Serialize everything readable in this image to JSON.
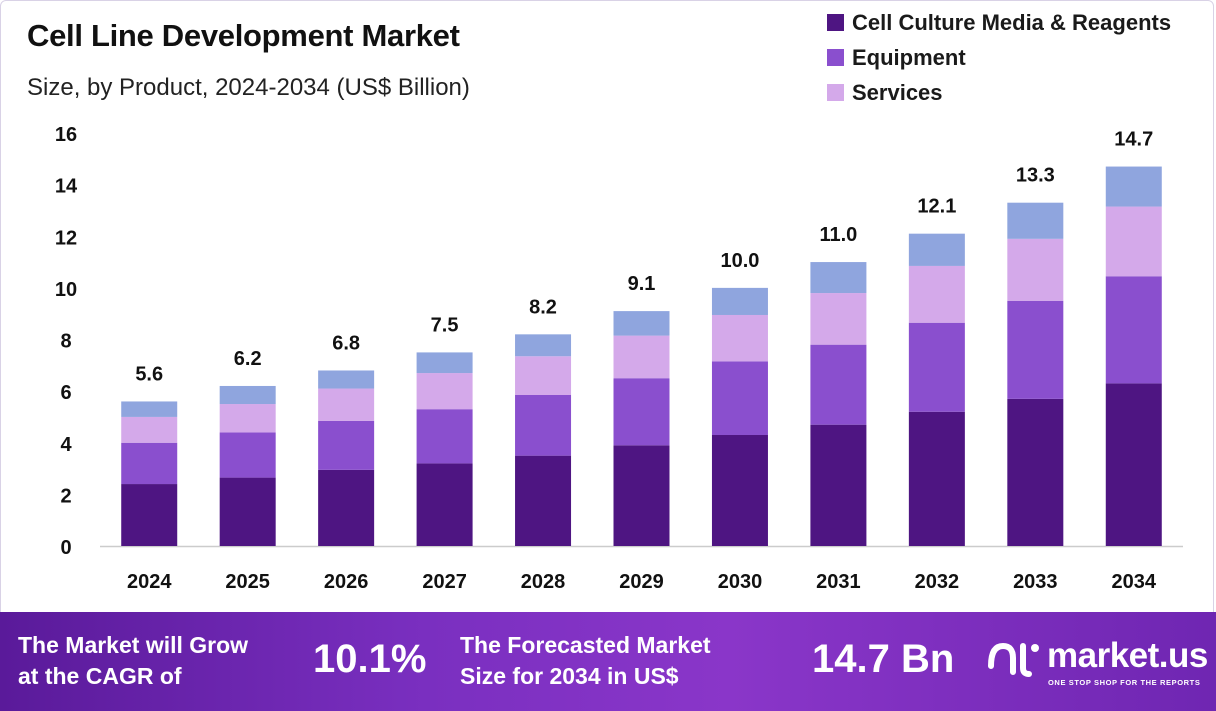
{
  "title": "Cell Line Development Market",
  "subtitle": "Size, by Product, 2024-2034 (US$ Billion)",
  "colors": {
    "cell_culture": "#4e1582",
    "equipment": "#8a4fce",
    "services": "#d4a9ea",
    "other": "#8fa5de",
    "axis": "#cccccc",
    "banner_start": "#5a1a9a",
    "banner_end": "#8a36c9"
  },
  "legend": [
    {
      "label": "Cell Culture Media & Reagents",
      "color": "#4e1582"
    },
    {
      "label": "Equipment",
      "color": "#8a4fce"
    },
    {
      "label": "Services",
      "color": "#d4a9ea"
    }
  ],
  "chart_data": {
    "type": "bar",
    "stacked": true,
    "categories": [
      "2024",
      "2025",
      "2026",
      "2027",
      "2028",
      "2029",
      "2030",
      "2031",
      "2032",
      "2033",
      "2034"
    ],
    "series": [
      {
        "name": "Cell Culture Media & Reagents",
        "color": "#4e1582",
        "values": [
          2.4,
          2.65,
          2.95,
          3.2,
          3.5,
          3.9,
          4.3,
          4.7,
          5.2,
          5.7,
          6.3
        ]
      },
      {
        "name": "Equipment",
        "color": "#8a4fce",
        "values": [
          1.6,
          1.75,
          1.9,
          2.1,
          2.35,
          2.6,
          2.85,
          3.1,
          3.45,
          3.8,
          4.15
        ]
      },
      {
        "name": "Services",
        "color": "#d4a9ea",
        "values": [
          1.0,
          1.1,
          1.25,
          1.4,
          1.5,
          1.65,
          1.8,
          2.0,
          2.2,
          2.4,
          2.7
        ]
      },
      {
        "color": "#8fa5de",
        "values": [
          0.6,
          0.7,
          0.7,
          0.8,
          0.85,
          0.95,
          1.05,
          1.2,
          1.25,
          1.4,
          1.55
        ]
      }
    ],
    "totals": [
      "5.6",
      "6.2",
      "6.8",
      "7.5",
      "8.2",
      "9.1",
      "10.0",
      "11.0",
      "12.1",
      "13.3",
      "14.7"
    ],
    "ylim": [
      0,
      16
    ],
    "yticks": [
      0,
      2,
      4,
      6,
      8,
      10,
      12,
      14,
      16
    ],
    "xlabel": "",
    "ylabel": "",
    "grid": false,
    "legend_position": "top-right"
  },
  "banner": {
    "cagr_text_line1": "The Market will Grow",
    "cagr_text_line2": "at the CAGR of",
    "cagr_value": "10.1%",
    "forecast_text_line1": "The Forecasted Market",
    "forecast_text_line2": "Size for 2034 in US$",
    "forecast_value": "14.7 Bn",
    "logo_text": "market.us",
    "logo_tagline": "ONE STOP SHOP FOR THE REPORTS"
  }
}
